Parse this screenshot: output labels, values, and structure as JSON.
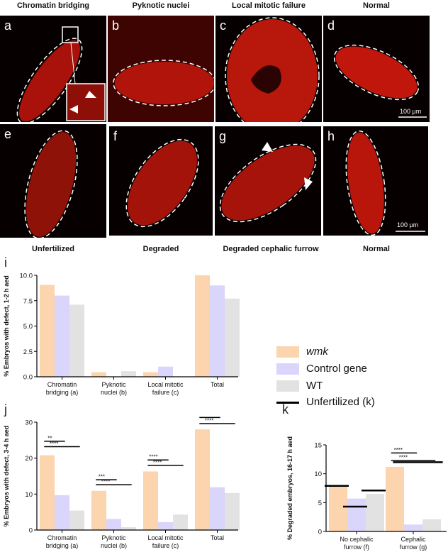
{
  "figure": {
    "top_titles": [
      "Chromatin bridging",
      "Pyknotic nuclei",
      "Local mitotic failure",
      "Normal"
    ],
    "bottom_titles": [
      "Unfertilized",
      "Degraded",
      "Degraded cephalic furrow",
      "Normal"
    ],
    "panel_letters": [
      "a",
      "b",
      "c",
      "d",
      "e",
      "f",
      "g",
      "h"
    ],
    "scale_top": "100 μm",
    "scale_bottom": "100 μm",
    "colors": {
      "wmk": "#fcd4ae",
      "control": "#d9d5fb",
      "wt": "#e2e2e2",
      "unfertilized": "#000000",
      "embryo": "#c0160c"
    }
  },
  "legend": {
    "wmk": "wmk",
    "control": "Control gene",
    "wt": "WT",
    "unfertilized": "Unfertilized (k)"
  },
  "chart_data": [
    {
      "id": "i",
      "letter": "i",
      "type": "bar",
      "title": "",
      "ylabel": "% Embryos with defect, 1-2 h aed",
      "xlabel": "",
      "ylim": [
        0,
        10
      ],
      "yticks": [
        "0.0",
        "2.5",
        "5.0",
        "7.5",
        "10.0"
      ],
      "categories": [
        [
          "Chromatin",
          "bridging (a)"
        ],
        [
          "Pyknotic",
          "nuclei (b)"
        ],
        [
          "Local mitotic",
          "failure (c)"
        ],
        [
          "Total"
        ]
      ],
      "series": [
        {
          "name": "wmk",
          "values": [
            9.05,
            0.45,
            0.45,
            10.0
          ]
        },
        {
          "name": "Control gene",
          "values": [
            8.0,
            0.0,
            1.0,
            9.0
          ]
        },
        {
          "name": "WT",
          "values": [
            7.1,
            0.55,
            0.0,
            7.7
          ]
        }
      ],
      "significance": []
    },
    {
      "id": "j",
      "letter": "j",
      "type": "bar",
      "title": "",
      "ylabel": "% Embryos with defect, 3-4 h aed",
      "xlabel": "",
      "ylim": [
        0,
        30
      ],
      "yticks": [
        "0",
        "10",
        "20",
        "30"
      ],
      "categories": [
        [
          "Chromatin",
          "bridging (a)"
        ],
        [
          "Pyknotic",
          "nuclei (b)"
        ],
        [
          "Local mitotic",
          "failure (c)"
        ],
        [
          "Total"
        ]
      ],
      "series": [
        {
          "name": "wmk",
          "values": [
            20.8,
            10.9,
            16.3,
            28.0
          ]
        },
        {
          "name": "Control gene",
          "values": [
            9.7,
            3.1,
            2.2,
            11.9
          ]
        },
        {
          "name": "WT",
          "values": [
            5.4,
            0.8,
            4.3,
            10.3
          ]
        }
      ],
      "significance": [
        {
          "group": 0,
          "to_series": 1,
          "label": "**",
          "y": 24.7
        },
        {
          "group": 0,
          "to_series": 2,
          "label": "****",
          "y": 23.2
        },
        {
          "group": 1,
          "to_series": 1,
          "label": "***",
          "y": 14.0
        },
        {
          "group": 1,
          "to_series": 2,
          "label": "****",
          "y": 12.6
        },
        {
          "group": 2,
          "to_series": 1,
          "label": "****",
          "y": 19.5
        },
        {
          "group": 2,
          "to_series": 2,
          "label": "****",
          "y": 18.0
        },
        {
          "group": 3,
          "to_series": 1,
          "label": "****",
          "y": 31.3
        },
        {
          "group": 3,
          "to_series": 2,
          "label": "****",
          "y": 29.6
        }
      ]
    },
    {
      "id": "k",
      "letter": "k",
      "type": "bar",
      "title": "",
      "ylabel": "% Degraded embryos, 16-17 h aed",
      "xlabel": "",
      "ylim": [
        0,
        15
      ],
      "yticks": [
        "0",
        "5",
        "10",
        "15"
      ],
      "categories": [
        [
          "No cephalic",
          "furrow (f)"
        ],
        [
          "Cephalic",
          "furrow (g)"
        ]
      ],
      "series": [
        {
          "name": "wmk",
          "values": [
            7.9,
            11.2
          ]
        },
        {
          "name": "Control gene",
          "values": [
            5.7,
            1.2
          ]
        },
        {
          "name": "WT",
          "values": [
            6.5,
            2.1
          ]
        }
      ],
      "unfertilized_marks": [
        [
          7.9,
          4.3,
          7.1
        ],
        [
          12.0
        ]
      ],
      "significance": [
        {
          "group": 1,
          "to_series": 1,
          "label": "****",
          "y": 13.6
        },
        {
          "group": 1,
          "to_series": 2,
          "label": "****",
          "y": 12.3
        }
      ]
    }
  ]
}
